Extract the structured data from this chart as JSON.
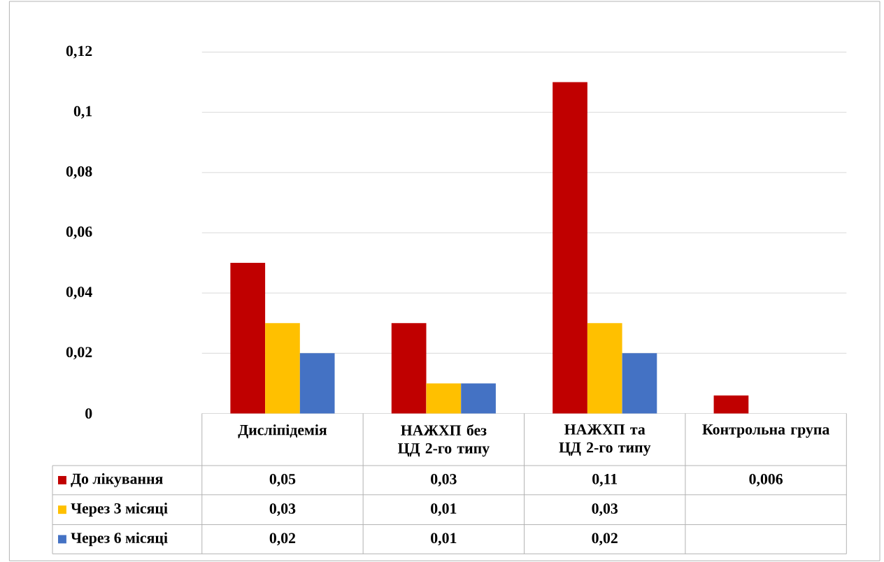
{
  "chart_data": {
    "type": "bar",
    "categories": [
      "Дисліпідемія",
      "НАЖХП без ЦД 2-го типу",
      "НАЖХП та ЦД 2-го типу",
      "Контрольна група"
    ],
    "series": [
      {
        "name": "До лікування",
        "color": "#c00000",
        "values": [
          0.05,
          0.03,
          0.11,
          0.006
        ],
        "value_labels": [
          "0,05",
          "0,03",
          "0,11",
          "0,006"
        ]
      },
      {
        "name": "Через 3 місяці",
        "color": "#ffc000",
        "values": [
          0.03,
          0.01,
          0.03,
          null
        ],
        "value_labels": [
          "0,03",
          "0,01",
          "0,03",
          null
        ]
      },
      {
        "name": "Через 6 місяці",
        "color": "#4472c4",
        "values": [
          0.02,
          0.01,
          0.02,
          null
        ],
        "value_labels": [
          "0,02",
          "0,01",
          "0,02",
          null
        ]
      }
    ],
    "ylim": [
      0,
      0.12
    ],
    "yticks": [
      {
        "value": 0,
        "label": "0"
      },
      {
        "value": 0.02,
        "label": "0,02"
      },
      {
        "value": 0.04,
        "label": "0,04"
      },
      {
        "value": 0.06,
        "label": "0,06"
      },
      {
        "value": 0.08,
        "label": "0,08"
      },
      {
        "value": 0.1,
        "label": "0,1"
      },
      {
        "value": 0.12,
        "label": "0,12"
      }
    ],
    "grid": "y",
    "legend": "bottom"
  }
}
